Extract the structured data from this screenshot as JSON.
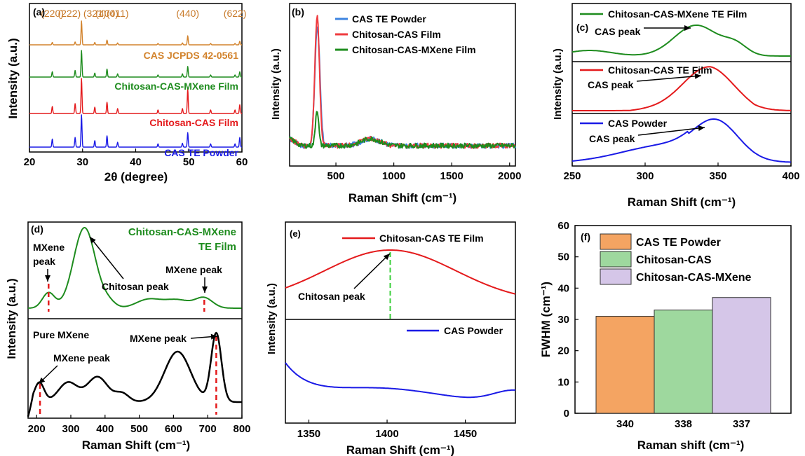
{
  "chart_data": [
    {
      "panel": "(a)",
      "type": "line",
      "xlabel": "2θ (degree)",
      "ylabel": "Intensity (a.u.)",
      "xlim": [
        20,
        60
      ],
      "xticks": [
        20,
        30,
        40,
        50,
        60
      ],
      "reference_label": "CAS JCPDS 42-0561",
      "peak_indices": [
        {
          "label": "(220)",
          "x": 24.3
        },
        {
          "label": "(222)",
          "x": 27.5
        },
        {
          "label": "(321)",
          "x": 32.3
        },
        {
          "label": "(400)",
          "x": 34.6
        },
        {
          "label": "(411)",
          "x": 36.6
        },
        {
          "label": "(440)",
          "x": 49.8
        },
        {
          "label": "(622)",
          "x": 58.7
        }
      ],
      "series": [
        {
          "name": "CAS JCPDS 42-0561",
          "color": "#d2822b",
          "peaks": [
            [
              24.3,
              0.1
            ],
            [
              28.6,
              0.12
            ],
            [
              29.8,
              1.0
            ],
            [
              32.3,
              0.1
            ],
            [
              34.6,
              0.2
            ],
            [
              36.6,
              0.08
            ],
            [
              44.2,
              0.06
            ],
            [
              48.8,
              0.08
            ],
            [
              49.8,
              0.38
            ],
            [
              54.1,
              0.06
            ],
            [
              58.7,
              0.06
            ],
            [
              59.6,
              0.15
            ]
          ]
        },
        {
          "name": "Chitosan-CAS-MXene Film",
          "color": "#1e8c1e",
          "peaks": [
            [
              24.3,
              0.2
            ],
            [
              28.6,
              0.25
            ],
            [
              29.8,
              1.0
            ],
            [
              32.3,
              0.15
            ],
            [
              34.6,
              0.3
            ],
            [
              36.6,
              0.12
            ],
            [
              44.2,
              0.08
            ],
            [
              48.8,
              0.12
            ],
            [
              49.8,
              0.4
            ],
            [
              54.1,
              0.08
            ],
            [
              58.7,
              0.08
            ],
            [
              59.6,
              0.2
            ]
          ]
        },
        {
          "name": "Chitosan-CAS Film",
          "color": "#e41a1c",
          "peaks": [
            [
              24.3,
              0.2
            ],
            [
              28.6,
              0.28
            ],
            [
              29.8,
              1.0
            ],
            [
              32.3,
              0.18
            ],
            [
              34.6,
              0.32
            ],
            [
              36.6,
              0.14
            ],
            [
              44.2,
              0.1
            ],
            [
              48.8,
              0.14
            ],
            [
              49.8,
              0.7
            ],
            [
              54.1,
              0.1
            ],
            [
              58.7,
              0.1
            ],
            [
              59.6,
              0.25
            ]
          ]
        },
        {
          "name": "CAS TE Powder",
          "color": "#1a1ae6",
          "peaks": [
            [
              24.3,
              0.25
            ],
            [
              28.6,
              0.3
            ],
            [
              29.8,
              1.0
            ],
            [
              32.3,
              0.2
            ],
            [
              34.6,
              0.35
            ],
            [
              36.6,
              0.15
            ],
            [
              44.2,
              0.1
            ],
            [
              48.8,
              0.12
            ],
            [
              49.8,
              0.45
            ],
            [
              54.1,
              0.1
            ],
            [
              58.7,
              0.1
            ],
            [
              59.6,
              0.3
            ]
          ]
        }
      ]
    },
    {
      "panel": "(b)",
      "type": "line",
      "xlabel": "Raman Shift (cm⁻¹)",
      "ylabel": "Intensity (a.u.)",
      "xlim": [
        100,
        2050
      ],
      "xticks": [
        500,
        1000,
        1500,
        2000
      ],
      "series": [
        {
          "name": "CAS TE Powder",
          "color": "#3d84e0",
          "peak_x": 340,
          "peak_height": 0.8
        },
        {
          "name": "Chitosan-CAS Film",
          "color": "#ef3b3f",
          "peak_x": 338,
          "peak_height": 1.0
        },
        {
          "name": "Chitosan-CAS-MXene Film",
          "color": "#1c8c1c",
          "peak_x": 337,
          "peak_height": 0.3
        }
      ]
    },
    {
      "panel": "(c)",
      "type": "line",
      "xlabel": "Raman Shift (cm⁻¹)",
      "ylabel": "Intensity (a.u.)",
      "xlim": [
        250,
        400
      ],
      "xticks": [
        250,
        300,
        350,
        400
      ],
      "annotation": "CAS peak",
      "series": [
        {
          "name": "Chitosan-CAS-MXene TE Film",
          "color": "#1e8c1e",
          "peak_x": 335
        },
        {
          "name": "Chitosan-CAS TE Film",
          "color": "#e41a1c",
          "peak_x": 343
        },
        {
          "name": "CAS Powder",
          "color": "#1a1ae6",
          "peak_x": 349
        }
      ]
    },
    {
      "panel": "(d)",
      "type": "line",
      "xlabel": "Raman Shift (cm⁻¹)",
      "ylabel": "Intensity (a.u.)",
      "xlim": [
        175,
        800
      ],
      "xticks": [
        200,
        300,
        400,
        500,
        600,
        700,
        800
      ],
      "series": [
        {
          "name": "Chitosan-CAS-MXene TE Film",
          "name_line1": "Chitosan-CAS-MXene",
          "name_line2": "TE Film",
          "color": "#1e8c1e"
        },
        {
          "name": "Pure MXene",
          "color": "#000000"
        }
      ],
      "annotations": {
        "mxene_peak": "MXene peak",
        "mxene_peak_split": [
          "MXene",
          "peak"
        ],
        "chitosan_peak": "Chitosan peak"
      },
      "markers_x": [
        235,
        690,
        210,
        725
      ]
    },
    {
      "panel": "(e)",
      "type": "line",
      "xlabel": "Raman Shift (cm⁻¹)",
      "ylabel": "Intensity (a.u.)",
      "xlim": [
        1335,
        1482
      ],
      "xticks": [
        1350,
        1400,
        1450
      ],
      "annotation": "Chitosan peak",
      "marker_x": 1402,
      "series": [
        {
          "name": "Chitosan-CAS TE Film",
          "color": "#e41a1c"
        },
        {
          "name": "CAS Powder",
          "color": "#1a1ae6"
        }
      ]
    },
    {
      "panel": "(f)",
      "type": "bar",
      "xlabel": "Raman shift (cm⁻¹)",
      "ylabel": "FWHM (cm⁻¹)",
      "ylim": [
        0,
        60
      ],
      "yticks": [
        0,
        10,
        20,
        30,
        40,
        50,
        60
      ],
      "categories": [
        "340",
        "338",
        "337"
      ],
      "series": [
        {
          "name": "CAS TE Powder",
          "value": 31,
          "color": "#f4a462"
        },
        {
          "name": "Chitosan-CAS",
          "value": 33,
          "color": "#9ed89e"
        },
        {
          "name": "Chitosan-CAS-MXene",
          "value": 37,
          "color": "#d5c6e8"
        }
      ]
    }
  ]
}
